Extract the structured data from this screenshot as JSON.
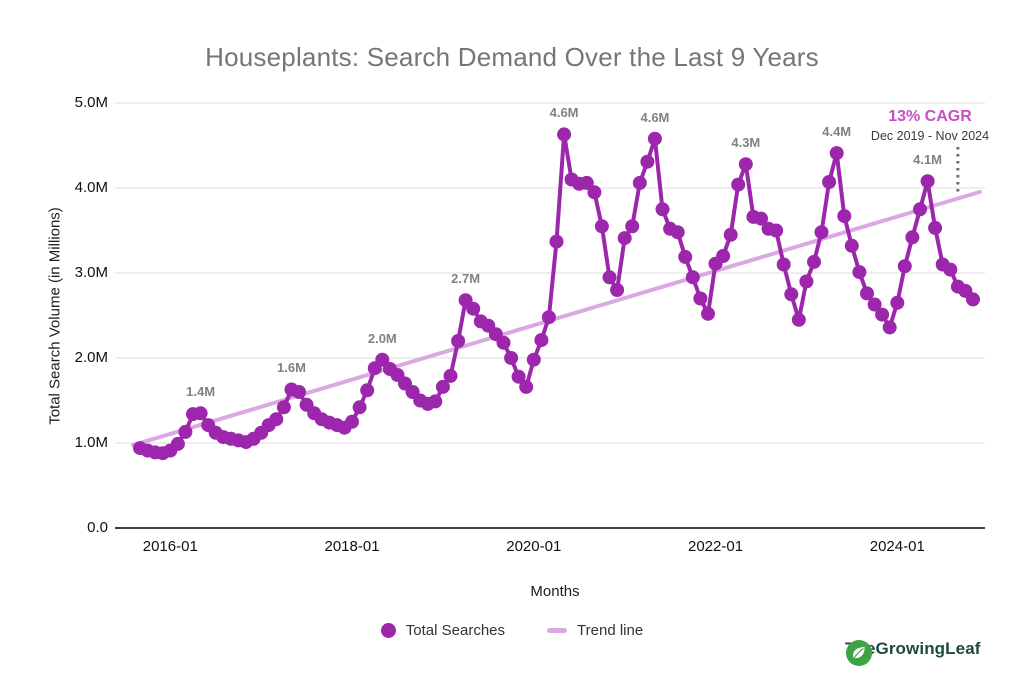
{
  "header": {
    "title": "Houseplants: Search Demand Over the Last 9 Years"
  },
  "chart_data": {
    "type": "line",
    "title": "Houseplants: Search Demand Over the Last 9 Years",
    "xlabel": "Months",
    "ylabel": "Total Search Volume (in Millions)",
    "ylim": [
      0,
      5
    ],
    "grid": "horizontal",
    "legend_position": "bottom",
    "y_ticks": [
      "0.0",
      "1.0M",
      "2.0M",
      "3.0M",
      "4.0M",
      "5.0M"
    ],
    "x_ticks": [
      {
        "label": "2016-01",
        "month": "2016-01"
      },
      {
        "label": "2018-01",
        "month": "2018-01"
      },
      {
        "label": "2020-01",
        "month": "2020-01"
      },
      {
        "label": "2022-01",
        "month": "2022-01"
      },
      {
        "label": "2024-01",
        "month": "2024-01"
      }
    ],
    "months": [
      "2015-09",
      "2015-10",
      "2015-11",
      "2015-12",
      "2016-01",
      "2016-02",
      "2016-03",
      "2016-04",
      "2016-05",
      "2016-06",
      "2016-07",
      "2016-08",
      "2016-09",
      "2016-10",
      "2016-11",
      "2016-12",
      "2017-01",
      "2017-02",
      "2017-03",
      "2017-04",
      "2017-05",
      "2017-06",
      "2017-07",
      "2017-08",
      "2017-09",
      "2017-10",
      "2017-11",
      "2017-12",
      "2018-01",
      "2018-02",
      "2018-03",
      "2018-04",
      "2018-05",
      "2018-06",
      "2018-07",
      "2018-08",
      "2018-09",
      "2018-10",
      "2018-11",
      "2018-12",
      "2019-01",
      "2019-02",
      "2019-03",
      "2019-04",
      "2019-05",
      "2019-06",
      "2019-07",
      "2019-08",
      "2019-09",
      "2019-10",
      "2019-11",
      "2019-12",
      "2020-01",
      "2020-02",
      "2020-03",
      "2020-04",
      "2020-05",
      "2020-06",
      "2020-07",
      "2020-08",
      "2020-09",
      "2020-10",
      "2020-11",
      "2020-12",
      "2021-01",
      "2021-02",
      "2021-03",
      "2021-04",
      "2021-05",
      "2021-06",
      "2021-07",
      "2021-08",
      "2021-09",
      "2021-10",
      "2021-11",
      "2021-12",
      "2022-01",
      "2022-02",
      "2022-03",
      "2022-04",
      "2022-05",
      "2022-06",
      "2022-07",
      "2022-08",
      "2022-09",
      "2022-10",
      "2022-11",
      "2022-12",
      "2023-01",
      "2023-02",
      "2023-03",
      "2023-04",
      "2023-05",
      "2023-06",
      "2023-07",
      "2023-08",
      "2023-09",
      "2023-10",
      "2023-11",
      "2023-12",
      "2024-01",
      "2024-02",
      "2024-03",
      "2024-04",
      "2024-05",
      "2024-06",
      "2024-07",
      "2024-08",
      "2024-09",
      "2024-10",
      "2024-11"
    ],
    "series": [
      {
        "name": "Total Searches",
        "color": "#9D27AC",
        "values": [
          0.94,
          0.91,
          0.89,
          0.88,
          0.91,
          0.99,
          1.13,
          1.34,
          1.35,
          1.21,
          1.12,
          1.07,
          1.05,
          1.03,
          1.01,
          1.05,
          1.12,
          1.21,
          1.28,
          1.42,
          1.63,
          1.6,
          1.45,
          1.35,
          1.28,
          1.24,
          1.21,
          1.18,
          1.25,
          1.42,
          1.62,
          1.88,
          1.98,
          1.87,
          1.8,
          1.7,
          1.6,
          1.5,
          1.46,
          1.49,
          1.66,
          1.79,
          2.2,
          2.68,
          2.58,
          2.43,
          2.38,
          2.28,
          2.18,
          2.0,
          1.78,
          1.66,
          1.98,
          2.21,
          2.48,
          3.37,
          4.63,
          4.1,
          4.05,
          4.06,
          3.95,
          3.55,
          2.95,
          2.8,
          3.41,
          3.55,
          4.06,
          4.31,
          4.58,
          3.75,
          3.52,
          3.48,
          3.19,
          2.95,
          2.7,
          2.52,
          3.11,
          3.2,
          3.45,
          4.04,
          4.28,
          3.66,
          3.64,
          3.52,
          3.5,
          3.1,
          2.75,
          2.45,
          2.9,
          3.13,
          3.48,
          4.07,
          4.41,
          3.67,
          3.32,
          3.01,
          2.76,
          2.63,
          2.51,
          2.36,
          2.65,
          3.08,
          3.42,
          3.75,
          4.08,
          3.53,
          3.1,
          3.04,
          2.84,
          2.79,
          2.69
        ]
      }
    ],
    "trend": {
      "name": "Trend line",
      "color": "#DBA9E2",
      "start_value": 1.0,
      "end_value": 3.93
    },
    "annotations": [
      {
        "label": "1.4M",
        "month": "2016-05"
      },
      {
        "label": "1.6M",
        "month": "2017-05"
      },
      {
        "label": "2.0M",
        "month": "2018-05"
      },
      {
        "label": "2.7M",
        "month": "2019-04"
      },
      {
        "label": "4.6M",
        "month": "2020-05"
      },
      {
        "label": "4.6M",
        "month": "2021-05"
      },
      {
        "label": "4.3M",
        "month": "2022-05"
      },
      {
        "label": "4.4M",
        "month": "2023-05"
      },
      {
        "label": "4.1M",
        "month": "2024-05"
      }
    ],
    "cagr": {
      "label": "13% CAGR",
      "sublabel": "Dec 2019 - Nov 2024",
      "color": "#C74EC4",
      "marker_month": "2024-09"
    }
  },
  "legend": {
    "items": [
      {
        "label": "Total Searches",
        "swatch": "dot",
        "color": "#9D27AC"
      },
      {
        "label": "Trend line",
        "swatch": "dash",
        "color": "#DBA9E2"
      }
    ]
  },
  "footer_logo": {
    "text": "TheGrowingLeaf",
    "icon": "leaf-icon",
    "icon_color": "#3FA245",
    "text_color": "#1C4A3C"
  },
  "colors": {
    "title_text": "#767676",
    "annotation_text": "#818181",
    "gridline": "#e3e3e3",
    "axis_line": "#444444",
    "marker_dotted_line": "#6b6b6b"
  }
}
